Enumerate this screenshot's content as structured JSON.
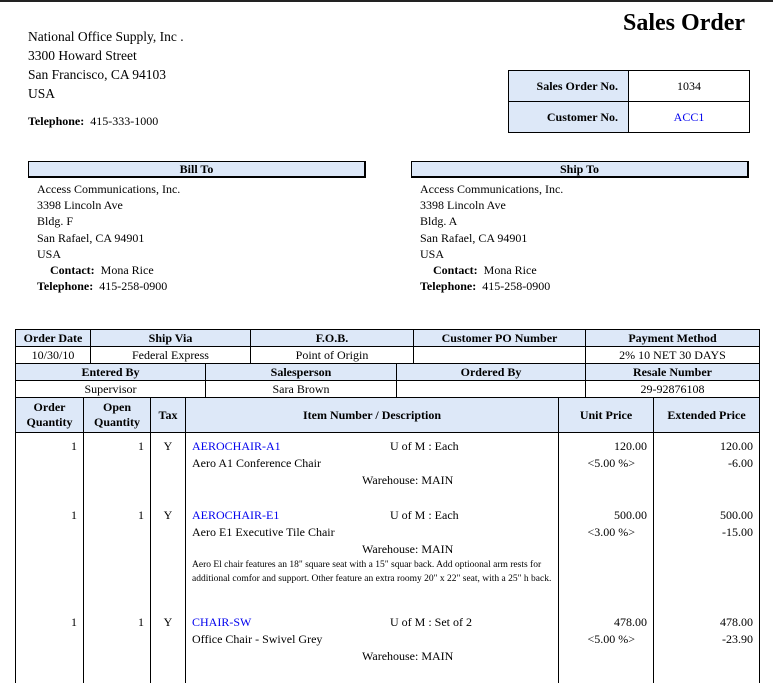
{
  "title": "Sales Order",
  "company": {
    "lines": [
      "National Office Supply, Inc .",
      "3300  Howard Street",
      "San Francisco, CA 94103",
      "USA"
    ],
    "tel_label": "Telephone:",
    "tel": "415-333-1000"
  },
  "info": {
    "so_label": "Sales Order No.",
    "so": "1034",
    "cust_label": "Customer No.",
    "cust": "ACC1"
  },
  "bill_to": {
    "heading": "Bill To",
    "lines": [
      "Access Communications, Inc.",
      "3398  Lincoln Ave",
      "Bldg. F",
      "San Rafael, CA  94901",
      "USA"
    ],
    "contact_label": "Contact:",
    "contact": "Mona Rice",
    "tel_label": "Telephone:",
    "tel": "415-258-0900"
  },
  "ship_to": {
    "heading": "Ship To",
    "lines": [
      "Access Communications, Inc.",
      "3398  Lincoln Ave",
      "Bldg.  A",
      "San Rafael, CA  94901",
      "USA"
    ],
    "contact_label": "Contact:",
    "contact": "Mona Rice",
    "tel_label": "Telephone:",
    "tel": "415-258-0900"
  },
  "order": {
    "h1": [
      "Order Date",
      "Ship Via",
      "F.O.B.",
      "Customer PO Number",
      "Payment Method"
    ],
    "v1": [
      "10/30/10",
      "Federal Express",
      "Point of Origin",
      "",
      "2% 10 NET 30 DAYS"
    ],
    "h2": [
      "Entered By",
      "Salesperson",
      "Ordered By",
      "Resale Number"
    ],
    "v2": [
      "Supervisor",
      "Sara Brown",
      "",
      "29-92876108"
    ]
  },
  "items_header": {
    "order_qty": "Order Quantity",
    "open_qty": "Open Quantity",
    "tax": "Tax",
    "item": "Item Number / Description",
    "unit": "Unit Price",
    "ext": "Extended Price"
  },
  "items": [
    {
      "qty": "1",
      "open": "1",
      "tax": "Y",
      "number": "AEROCHAIR-A1",
      "uom": "U of M : Each",
      "desc": "Aero A1 Conference Chair",
      "warehouse": "Warehouse: MAIN",
      "unit": "120.00",
      "discount": "<5.00 %>",
      "ext": "120.00",
      "ext_discount": "-6.00",
      "note": ""
    },
    {
      "qty": "1",
      "open": "1",
      "tax": "Y",
      "number": "AEROCHAIR-E1",
      "uom": "U of M : Each",
      "desc": "Aero E1 Executive Tile Chair",
      "warehouse": "Warehouse: MAIN",
      "unit": "500.00",
      "discount": "<3.00 %>",
      "ext": "500.00",
      "ext_discount": "-15.00",
      "note": "Aero El chair features an 18\" square seat with a 15\" squar back.  Add optioonal arm rests for additional comfor and support.  Other feature an extra roomy 20\" x 22\" seat, with a 25\" h back."
    },
    {
      "qty": "1",
      "open": "1",
      "tax": "Y",
      "number": "CHAIR-SW",
      "uom": "U of M : Set of 2",
      "desc": "Office Chair - Swivel Grey",
      "warehouse": "Warehouse: MAIN",
      "unit": "478.00",
      "discount": "<5.00 %>",
      "ext": "478.00",
      "ext_discount": "-23.90",
      "note": ""
    }
  ],
  "colors": {
    "header_bg": "#dde8f8",
    "link": "#0000ee"
  }
}
